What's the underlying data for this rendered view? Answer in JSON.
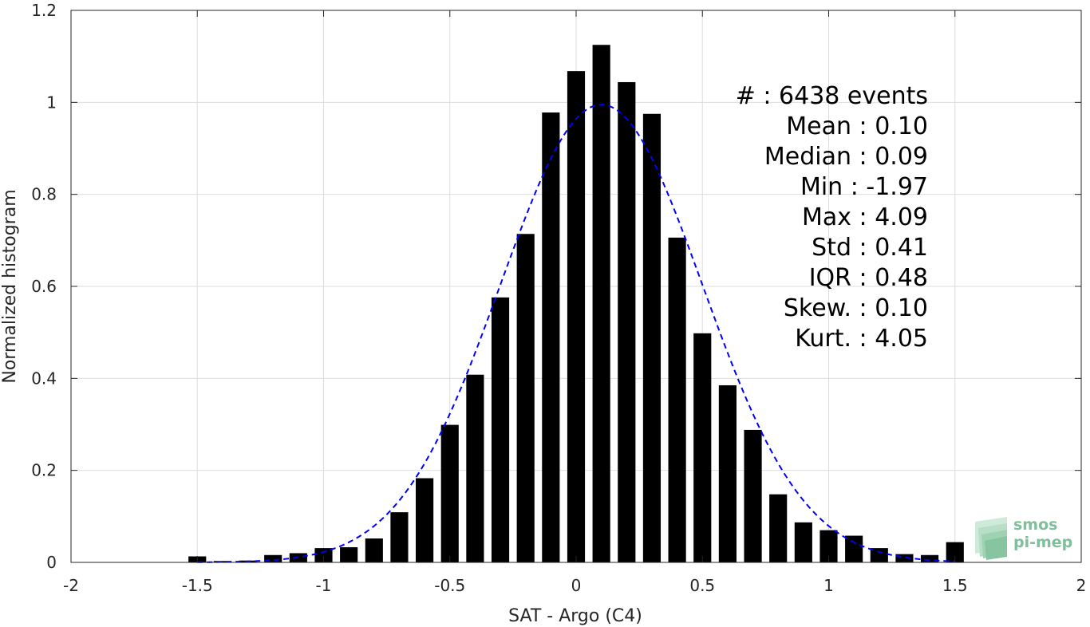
{
  "chart_data": {
    "type": "bar",
    "xlabel": "SAT - Argo (C4)",
    "ylabel": "Normalized histogram",
    "xlim": [
      -2,
      2
    ],
    "ylim": [
      0,
      1.2
    ],
    "x_ticks": [
      -2,
      -1.5,
      -1,
      -0.5,
      0,
      0.5,
      1,
      1.5,
      2
    ],
    "x_tick_labels": [
      "-2",
      "-1.5",
      "-1",
      "-0.5",
      "0",
      "0.5",
      "1",
      "1.5",
      "2"
    ],
    "y_ticks": [
      0,
      0.2,
      0.4,
      0.6,
      0.8,
      1,
      1.2
    ],
    "y_tick_labels": [
      "0",
      "0.2",
      "0.4",
      "0.6",
      "0.8",
      "1",
      "1.2"
    ],
    "grid": true,
    "bar_width": 0.07,
    "bars": {
      "x": [
        -1.5,
        -1.4,
        -1.3,
        -1.2,
        -1.1,
        -1.0,
        -0.9,
        -0.8,
        -0.7,
        -0.6,
        -0.5,
        -0.4,
        -0.3,
        -0.2,
        -0.1,
        0.0,
        0.1,
        0.2,
        0.3,
        0.4,
        0.5,
        0.6,
        0.7,
        0.8,
        0.9,
        1.0,
        1.1,
        1.2,
        1.3,
        1.4,
        1.5
      ],
      "values": [
        0.013,
        0.003,
        0.004,
        0.016,
        0.02,
        0.031,
        0.033,
        0.052,
        0.109,
        0.183,
        0.299,
        0.408,
        0.576,
        0.714,
        0.978,
        1.068,
        1.125,
        1.044,
        0.975,
        0.706,
        0.498,
        0.385,
        0.288,
        0.148,
        0.087,
        0.07,
        0.058,
        0.031,
        0.018,
        0.016,
        0.044
      ],
      "color": "#000000"
    },
    "fit": {
      "type": "gaussian",
      "mean": 0.1,
      "std": 0.4,
      "peak": 0.995,
      "color": "#0000ff",
      "style": "dashed"
    },
    "stats": [
      "#  : 6438 events",
      "Mean : 0.10",
      "Median : 0.09",
      "Min : -1.97",
      "Max : 4.09",
      "Std : 0.41",
      "IQR : 0.48",
      "Skew. : 0.10",
      "Kurt. : 4.05"
    ],
    "legend_position": "top-right"
  },
  "logo": {
    "line1": "smos",
    "line2": "pi-mep",
    "color": "#7fbf9a"
  }
}
